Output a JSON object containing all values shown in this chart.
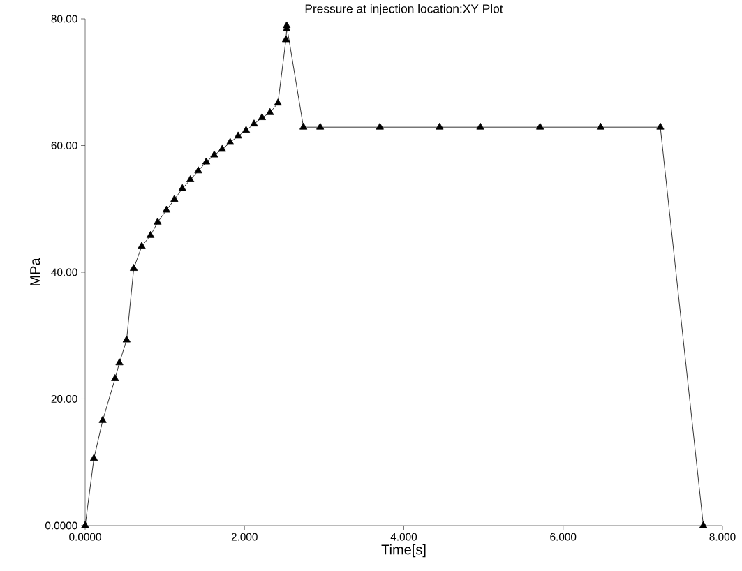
{
  "chart_data": {
    "type": "line",
    "title": "Pressure at injection location:XY Plot",
    "xlabel": "Time[s]",
    "ylabel": "MPa",
    "x": [
      0,
      0.11,
      0.22,
      0.375,
      0.43,
      0.52,
      0.61,
      0.71,
      0.82,
      0.91,
      1.02,
      1.12,
      1.22,
      1.32,
      1.42,
      1.52,
      1.62,
      1.72,
      1.82,
      1.92,
      2.02,
      2.12,
      2.22,
      2.32,
      2.42,
      2.52,
      2.53,
      2.53,
      2.74,
      2.95,
      3.7,
      4.45,
      4.96,
      5.71,
      6.47,
      7.22,
      7.76
    ],
    "series": [
      {
        "color": "#000000",
        "values": [
          0,
          10.6,
          16.6,
          23.2,
          25.7,
          29.3,
          40.6,
          44.1,
          45.8,
          47.9,
          49.8,
          51.5,
          53.2,
          54.6,
          56.0,
          57.4,
          58.5,
          59.4,
          60.5,
          61.5,
          62.4,
          63.4,
          64.4,
          65.2,
          66.7,
          76.7,
          78.4,
          78.9,
          62.9,
          62.9,
          62.9,
          62.9,
          62.9,
          62.9,
          62.9,
          62.9,
          0
        ]
      }
    ],
    "marker": "triangle",
    "line_style": "solid",
    "xlim": [
      0,
      8
    ],
    "ylim": [
      0,
      80
    ],
    "xticks": [
      {
        "value": 0,
        "label": "0.0000"
      },
      {
        "value": 2,
        "label": "2.000"
      },
      {
        "value": 4,
        "label": "4.000"
      },
      {
        "value": 6,
        "label": "6.000"
      },
      {
        "value": 8,
        "label": "8.000"
      }
    ],
    "yticks": [
      {
        "value": 0,
        "label": "0.0000"
      },
      {
        "value": 20,
        "label": "20.00"
      },
      {
        "value": 40,
        "label": "40.00"
      },
      {
        "value": 60,
        "label": "60.00"
      },
      {
        "value": 80,
        "label": "80.00"
      }
    ]
  }
}
